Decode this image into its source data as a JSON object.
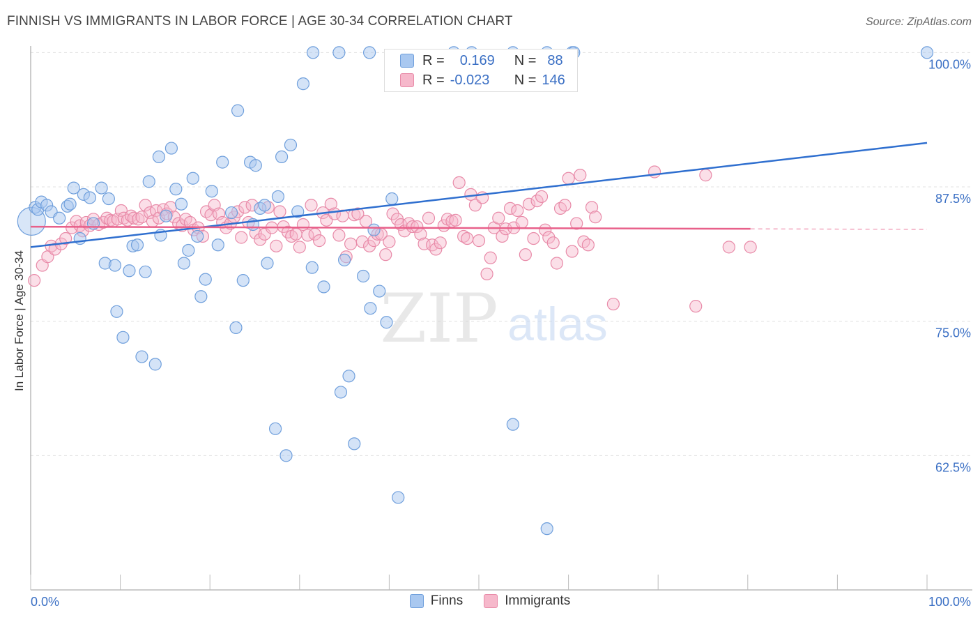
{
  "title": "FINNISH VS IMMIGRANTS IN LABOR FORCE | AGE 30-34 CORRELATION CHART",
  "source": "Source: ZipAtlas.com",
  "watermark": {
    "zip": "ZIP",
    "atlas": "atlas"
  },
  "legend": {
    "finns": {
      "r_label": "R =",
      "r_value": "0.169",
      "n_label": "N =",
      "n_value": "88"
    },
    "immigrants": {
      "r_label": "R =",
      "r_value": "-0.023",
      "n_label": "N =",
      "n_value": "146"
    }
  },
  "bottom_legend": {
    "finns": "Finns",
    "immigrants": "Immigrants"
  },
  "colors": {
    "finns_fill": "#a9c8f0",
    "finns_stroke": "#6f9fdc",
    "finns_line": "#2f6fcf",
    "imm_fill": "#f6b8cb",
    "imm_stroke": "#e88aa8",
    "imm_line": "#e8608a",
    "tick_label": "#3a6fc4",
    "grid": "#e0e0e0"
  },
  "chart_data": {
    "type": "scatter",
    "title": "FINNISH VS IMMIGRANTS IN LABOR FORCE | AGE 30-34 CORRELATION CHART",
    "xlabel": "",
    "ylabel": "In Labor Force | Age 30-34",
    "xlim": [
      0,
      100
    ],
    "ylim": [
      50,
      101
    ],
    "x_tick_labels": [
      "0.0%",
      "100.0%"
    ],
    "y_ticks": [
      62.5,
      75.0,
      87.5,
      100.0
    ],
    "y_tick_labels": [
      "62.5%",
      "75.0%",
      "87.5%",
      "100.0%"
    ],
    "grid": true,
    "legend_position": "top-center",
    "series": [
      {
        "name": "Finns",
        "trend": {
          "x": [
            0,
            100
          ],
          "y": [
            81.9,
            91.6
          ]
        },
        "points": [
          [
            0.5,
            85.6
          ],
          [
            0.8,
            85.4
          ],
          [
            1.2,
            86.1
          ],
          [
            1.8,
            85.8
          ],
          [
            2.3,
            85.2
          ],
          [
            3.2,
            84.6
          ],
          [
            4.1,
            85.7
          ],
          [
            4.4,
            85.9
          ],
          [
            4.8,
            87.4
          ],
          [
            5.5,
            82.7
          ],
          [
            5.9,
            86.8
          ],
          [
            6.6,
            86.5
          ],
          [
            7.0,
            84.1
          ],
          [
            7.9,
            87.4
          ],
          [
            8.3,
            80.4
          ],
          [
            8.7,
            86.4
          ],
          [
            9.4,
            80.2
          ],
          [
            9.6,
            75.9
          ],
          [
            10.3,
            73.5
          ],
          [
            11.0,
            79.7
          ],
          [
            11.4,
            82.0
          ],
          [
            11.9,
            82.1
          ],
          [
            12.4,
            71.7
          ],
          [
            12.8,
            79.6
          ],
          [
            13.2,
            88.0
          ],
          [
            13.9,
            71.0
          ],
          [
            14.3,
            90.3
          ],
          [
            14.5,
            83.0
          ],
          [
            15.1,
            84.8
          ],
          [
            15.7,
            91.1
          ],
          [
            16.2,
            87.3
          ],
          [
            16.8,
            85.9
          ],
          [
            17.1,
            80.4
          ],
          [
            17.6,
            81.6
          ],
          [
            18.1,
            88.3
          ],
          [
            18.6,
            82.9
          ],
          [
            19.0,
            77.3
          ],
          [
            19.5,
            78.9
          ],
          [
            20.2,
            87.1
          ],
          [
            20.9,
            82.1
          ],
          [
            21.4,
            89.8
          ],
          [
            22.4,
            85.1
          ],
          [
            22.9,
            74.4
          ],
          [
            23.1,
            94.6
          ],
          [
            23.7,
            78.8
          ],
          [
            24.5,
            89.8
          ],
          [
            24.8,
            84.0
          ],
          [
            25.1,
            89.5
          ],
          [
            25.6,
            85.5
          ],
          [
            26.1,
            85.8
          ],
          [
            26.4,
            80.4
          ],
          [
            27.3,
            65.0
          ],
          [
            27.6,
            86.6
          ],
          [
            28.0,
            90.3
          ],
          [
            28.5,
            62.5
          ],
          [
            29.0,
            91.4
          ],
          [
            29.8,
            85.2
          ],
          [
            30.4,
            97.1
          ],
          [
            31.4,
            80.0
          ],
          [
            31.5,
            100.0
          ],
          [
            32.7,
            78.2
          ],
          [
            34.4,
            100.0
          ],
          [
            34.6,
            68.4
          ],
          [
            35.0,
            80.7
          ],
          [
            35.5,
            69.9
          ],
          [
            36.1,
            63.6
          ],
          [
            37.1,
            79.2
          ],
          [
            37.8,
            100.0
          ],
          [
            37.9,
            76.2
          ],
          [
            38.3,
            83.5
          ],
          [
            38.9,
            77.8
          ],
          [
            39.7,
            74.9
          ],
          [
            40.3,
            86.4
          ],
          [
            41.0,
            58.6
          ],
          [
            47.2,
            100.0
          ],
          [
            49.2,
            100.0
          ],
          [
            53.8,
            100.0
          ],
          [
            53.8,
            65.4
          ],
          [
            57.6,
            100.0
          ],
          [
            57.6,
            55.7
          ],
          [
            60.4,
            100.0
          ],
          [
            60.6,
            100.0
          ],
          [
            100.0,
            100.0
          ]
        ]
      },
      {
        "name": "Immigrants",
        "trend": {
          "x": [
            0,
            80.3
          ],
          "y": [
            83.8,
            83.6
          ]
        },
        "points": [
          [
            0.4,
            78.8
          ],
          [
            1.3,
            80.2
          ],
          [
            1.9,
            81.0
          ],
          [
            2.3,
            82.0
          ],
          [
            2.7,
            81.7
          ],
          [
            3.4,
            82.2
          ],
          [
            3.9,
            82.7
          ],
          [
            4.6,
            83.7
          ],
          [
            5.1,
            84.3
          ],
          [
            5.5,
            83.9
          ],
          [
            5.8,
            83.4
          ],
          [
            6.2,
            84.2
          ],
          [
            6.6,
            83.9
          ],
          [
            7.0,
            84.5
          ],
          [
            7.6,
            84.0
          ],
          [
            8.1,
            84.2
          ],
          [
            8.5,
            84.6
          ],
          [
            8.9,
            84.4
          ],
          [
            9.2,
            84.3
          ],
          [
            9.7,
            84.5
          ],
          [
            10.1,
            85.3
          ],
          [
            10.4,
            84.6
          ],
          [
            10.8,
            84.4
          ],
          [
            11.2,
            84.8
          ],
          [
            11.5,
            84.6
          ],
          [
            12.0,
            84.5
          ],
          [
            12.4,
            84.7
          ],
          [
            12.8,
            85.8
          ],
          [
            13.3,
            85.1
          ],
          [
            13.6,
            84.3
          ],
          [
            14.0,
            85.3
          ],
          [
            14.3,
            84.6
          ],
          [
            14.8,
            85.4
          ],
          [
            15.2,
            85.0
          ],
          [
            15.6,
            85.6
          ],
          [
            16.0,
            84.7
          ],
          [
            16.5,
            84.1
          ],
          [
            16.9,
            83.9
          ],
          [
            17.3,
            84.5
          ],
          [
            17.8,
            84.2
          ],
          [
            18.2,
            83.5
          ],
          [
            18.7,
            83.7
          ],
          [
            19.2,
            82.9
          ],
          [
            19.6,
            85.2
          ],
          [
            20.1,
            84.9
          ],
          [
            20.5,
            85.8
          ],
          [
            21.0,
            85.0
          ],
          [
            21.4,
            84.2
          ],
          [
            21.8,
            83.7
          ],
          [
            22.3,
            84.1
          ],
          [
            22.7,
            84.7
          ],
          [
            23.1,
            85.2
          ],
          [
            23.5,
            82.8
          ],
          [
            23.9,
            85.6
          ],
          [
            24.3,
            84.2
          ],
          [
            24.7,
            85.8
          ],
          [
            25.1,
            83.2
          ],
          [
            25.6,
            82.6
          ],
          [
            26.1,
            83.1
          ],
          [
            26.5,
            85.6
          ],
          [
            26.9,
            83.7
          ],
          [
            27.4,
            82.0
          ],
          [
            27.8,
            85.2
          ],
          [
            28.2,
            83.8
          ],
          [
            28.7,
            83.3
          ],
          [
            29.1,
            82.9
          ],
          [
            29.6,
            83.1
          ],
          [
            30.0,
            81.9
          ],
          [
            30.4,
            84.0
          ],
          [
            30.9,
            83.0
          ],
          [
            31.3,
            85.8
          ],
          [
            31.7,
            83.1
          ],
          [
            32.2,
            82.5
          ],
          [
            32.6,
            85.1
          ],
          [
            33.0,
            84.4
          ],
          [
            33.5,
            85.9
          ],
          [
            33.9,
            85.0
          ],
          [
            34.4,
            83.0
          ],
          [
            34.8,
            84.8
          ],
          [
            35.2,
            81.0
          ],
          [
            35.7,
            82.2
          ],
          [
            36.1,
            84.9
          ],
          [
            36.5,
            85.0
          ],
          [
            37.0,
            82.4
          ],
          [
            37.4,
            84.3
          ],
          [
            37.8,
            82.0
          ],
          [
            38.3,
            82.5
          ],
          [
            38.7,
            83.1
          ],
          [
            39.1,
            83.1
          ],
          [
            39.6,
            81.2
          ],
          [
            40.0,
            82.4
          ],
          [
            40.4,
            85.0
          ],
          [
            40.9,
            84.5
          ],
          [
            41.3,
            84.0
          ],
          [
            41.7,
            83.4
          ],
          [
            42.2,
            84.1
          ],
          [
            42.6,
            83.8
          ],
          [
            43.1,
            83.8
          ],
          [
            43.5,
            83.1
          ],
          [
            43.9,
            82.2
          ],
          [
            44.4,
            84.6
          ],
          [
            44.8,
            82.1
          ],
          [
            45.2,
            81.7
          ],
          [
            45.7,
            82.3
          ],
          [
            46.1,
            83.9
          ],
          [
            46.5,
            84.5
          ],
          [
            47.0,
            84.3
          ],
          [
            47.4,
            84.4
          ],
          [
            47.8,
            87.9
          ],
          [
            48.3,
            82.9
          ],
          [
            48.7,
            82.7
          ],
          [
            49.1,
            86.8
          ],
          [
            49.6,
            85.8
          ],
          [
            50.0,
            82.5
          ],
          [
            50.4,
            86.5
          ],
          [
            50.9,
            79.4
          ],
          [
            51.3,
            80.9
          ],
          [
            51.7,
            83.7
          ],
          [
            52.2,
            84.6
          ],
          [
            52.6,
            82.9
          ],
          [
            53.0,
            83.6
          ],
          [
            53.5,
            85.5
          ],
          [
            53.9,
            83.7
          ],
          [
            54.3,
            85.3
          ],
          [
            54.8,
            84.2
          ],
          [
            55.2,
            81.2
          ],
          [
            55.6,
            85.9
          ],
          [
            56.1,
            82.7
          ],
          [
            56.5,
            86.2
          ],
          [
            57.0,
            86.6
          ],
          [
            57.4,
            83.5
          ],
          [
            57.8,
            82.8
          ],
          [
            58.3,
            82.3
          ],
          [
            58.7,
            80.4
          ],
          [
            59.1,
            85.5
          ],
          [
            59.6,
            85.8
          ],
          [
            60.0,
            88.3
          ],
          [
            60.4,
            81.5
          ],
          [
            60.9,
            84.1
          ],
          [
            61.3,
            88.6
          ],
          [
            61.7,
            82.4
          ],
          [
            62.2,
            82.1
          ],
          [
            62.6,
            85.6
          ],
          [
            63.0,
            84.7
          ],
          [
            65.0,
            76.6
          ],
          [
            69.6,
            88.9
          ],
          [
            74.2,
            76.4
          ],
          [
            75.3,
            88.6
          ],
          [
            77.9,
            81.9
          ],
          [
            80.3,
            81.9
          ]
        ]
      }
    ]
  }
}
